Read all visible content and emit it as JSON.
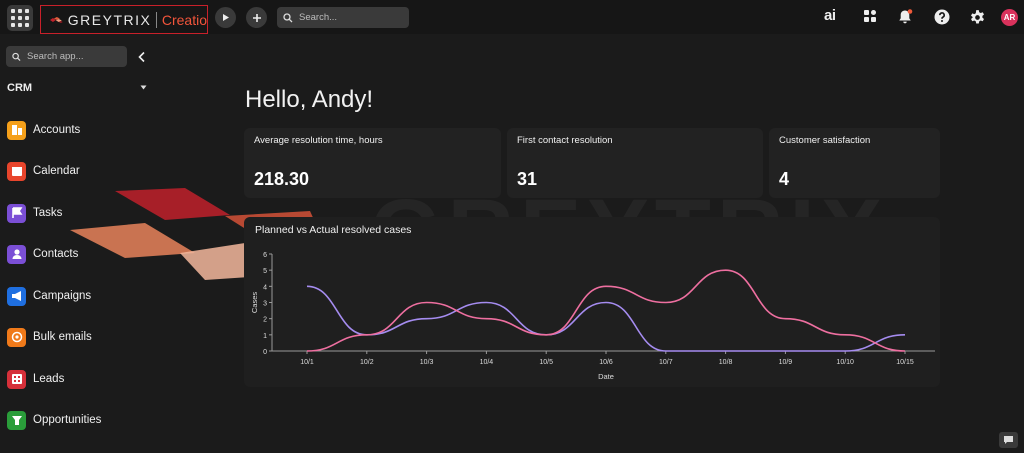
{
  "topbar": {
    "logo_text": "GREYTRIX",
    "logo_product": "Creatio",
    "search_placeholder": "Search...",
    "ai_label": "ai",
    "avatar_initials": "AR"
  },
  "sidebar": {
    "search_placeholder": "Search app...",
    "workspace": "CRM",
    "items": [
      {
        "label": "Accounts",
        "color": "#f5a01a"
      },
      {
        "label": "Calendar",
        "color": "#e8452c"
      },
      {
        "label": "Tasks",
        "color": "#7b4fd6"
      },
      {
        "label": "Contacts",
        "color": "#7b4fd6"
      },
      {
        "label": "Campaigns",
        "color": "#1f6fe0"
      },
      {
        "label": "Bulk emails",
        "color": "#f07a1a"
      },
      {
        "label": "Leads",
        "color": "#d6303a"
      },
      {
        "label": "Opportunities",
        "color": "#2a9d3a"
      }
    ]
  },
  "main": {
    "greeting": "Hello, Andy!",
    "cards": [
      {
        "title": "Average resolution time, hours",
        "value": "218.30"
      },
      {
        "title": "First contact resolution",
        "value": "31"
      },
      {
        "title": "Customer satisfaction",
        "value": "4"
      }
    ]
  },
  "watermark_text": "GREYTRIX",
  "chart_data": {
    "type": "line",
    "title": "Planned vs Actual resolved cases",
    "xlabel": "Date",
    "ylabel": "Cases",
    "ylim": [
      0,
      6
    ],
    "yticks": [
      0,
      1,
      2,
      3,
      4,
      5,
      6
    ],
    "categories": [
      "10/1",
      "10/2",
      "10/3",
      "10/4",
      "10/5",
      "10/6",
      "10/7",
      "10/8",
      "10/9",
      "10/10",
      "10/15"
    ],
    "series": [
      {
        "color": "#a58cf0",
        "values": [
          4,
          1,
          2,
          3,
          1,
          3,
          0,
          0,
          0,
          0,
          1
        ]
      },
      {
        "color": "#ee6fa0",
        "values": [
          0,
          1,
          3,
          2,
          1,
          4,
          3,
          5,
          2,
          1,
          0
        ]
      }
    ]
  }
}
